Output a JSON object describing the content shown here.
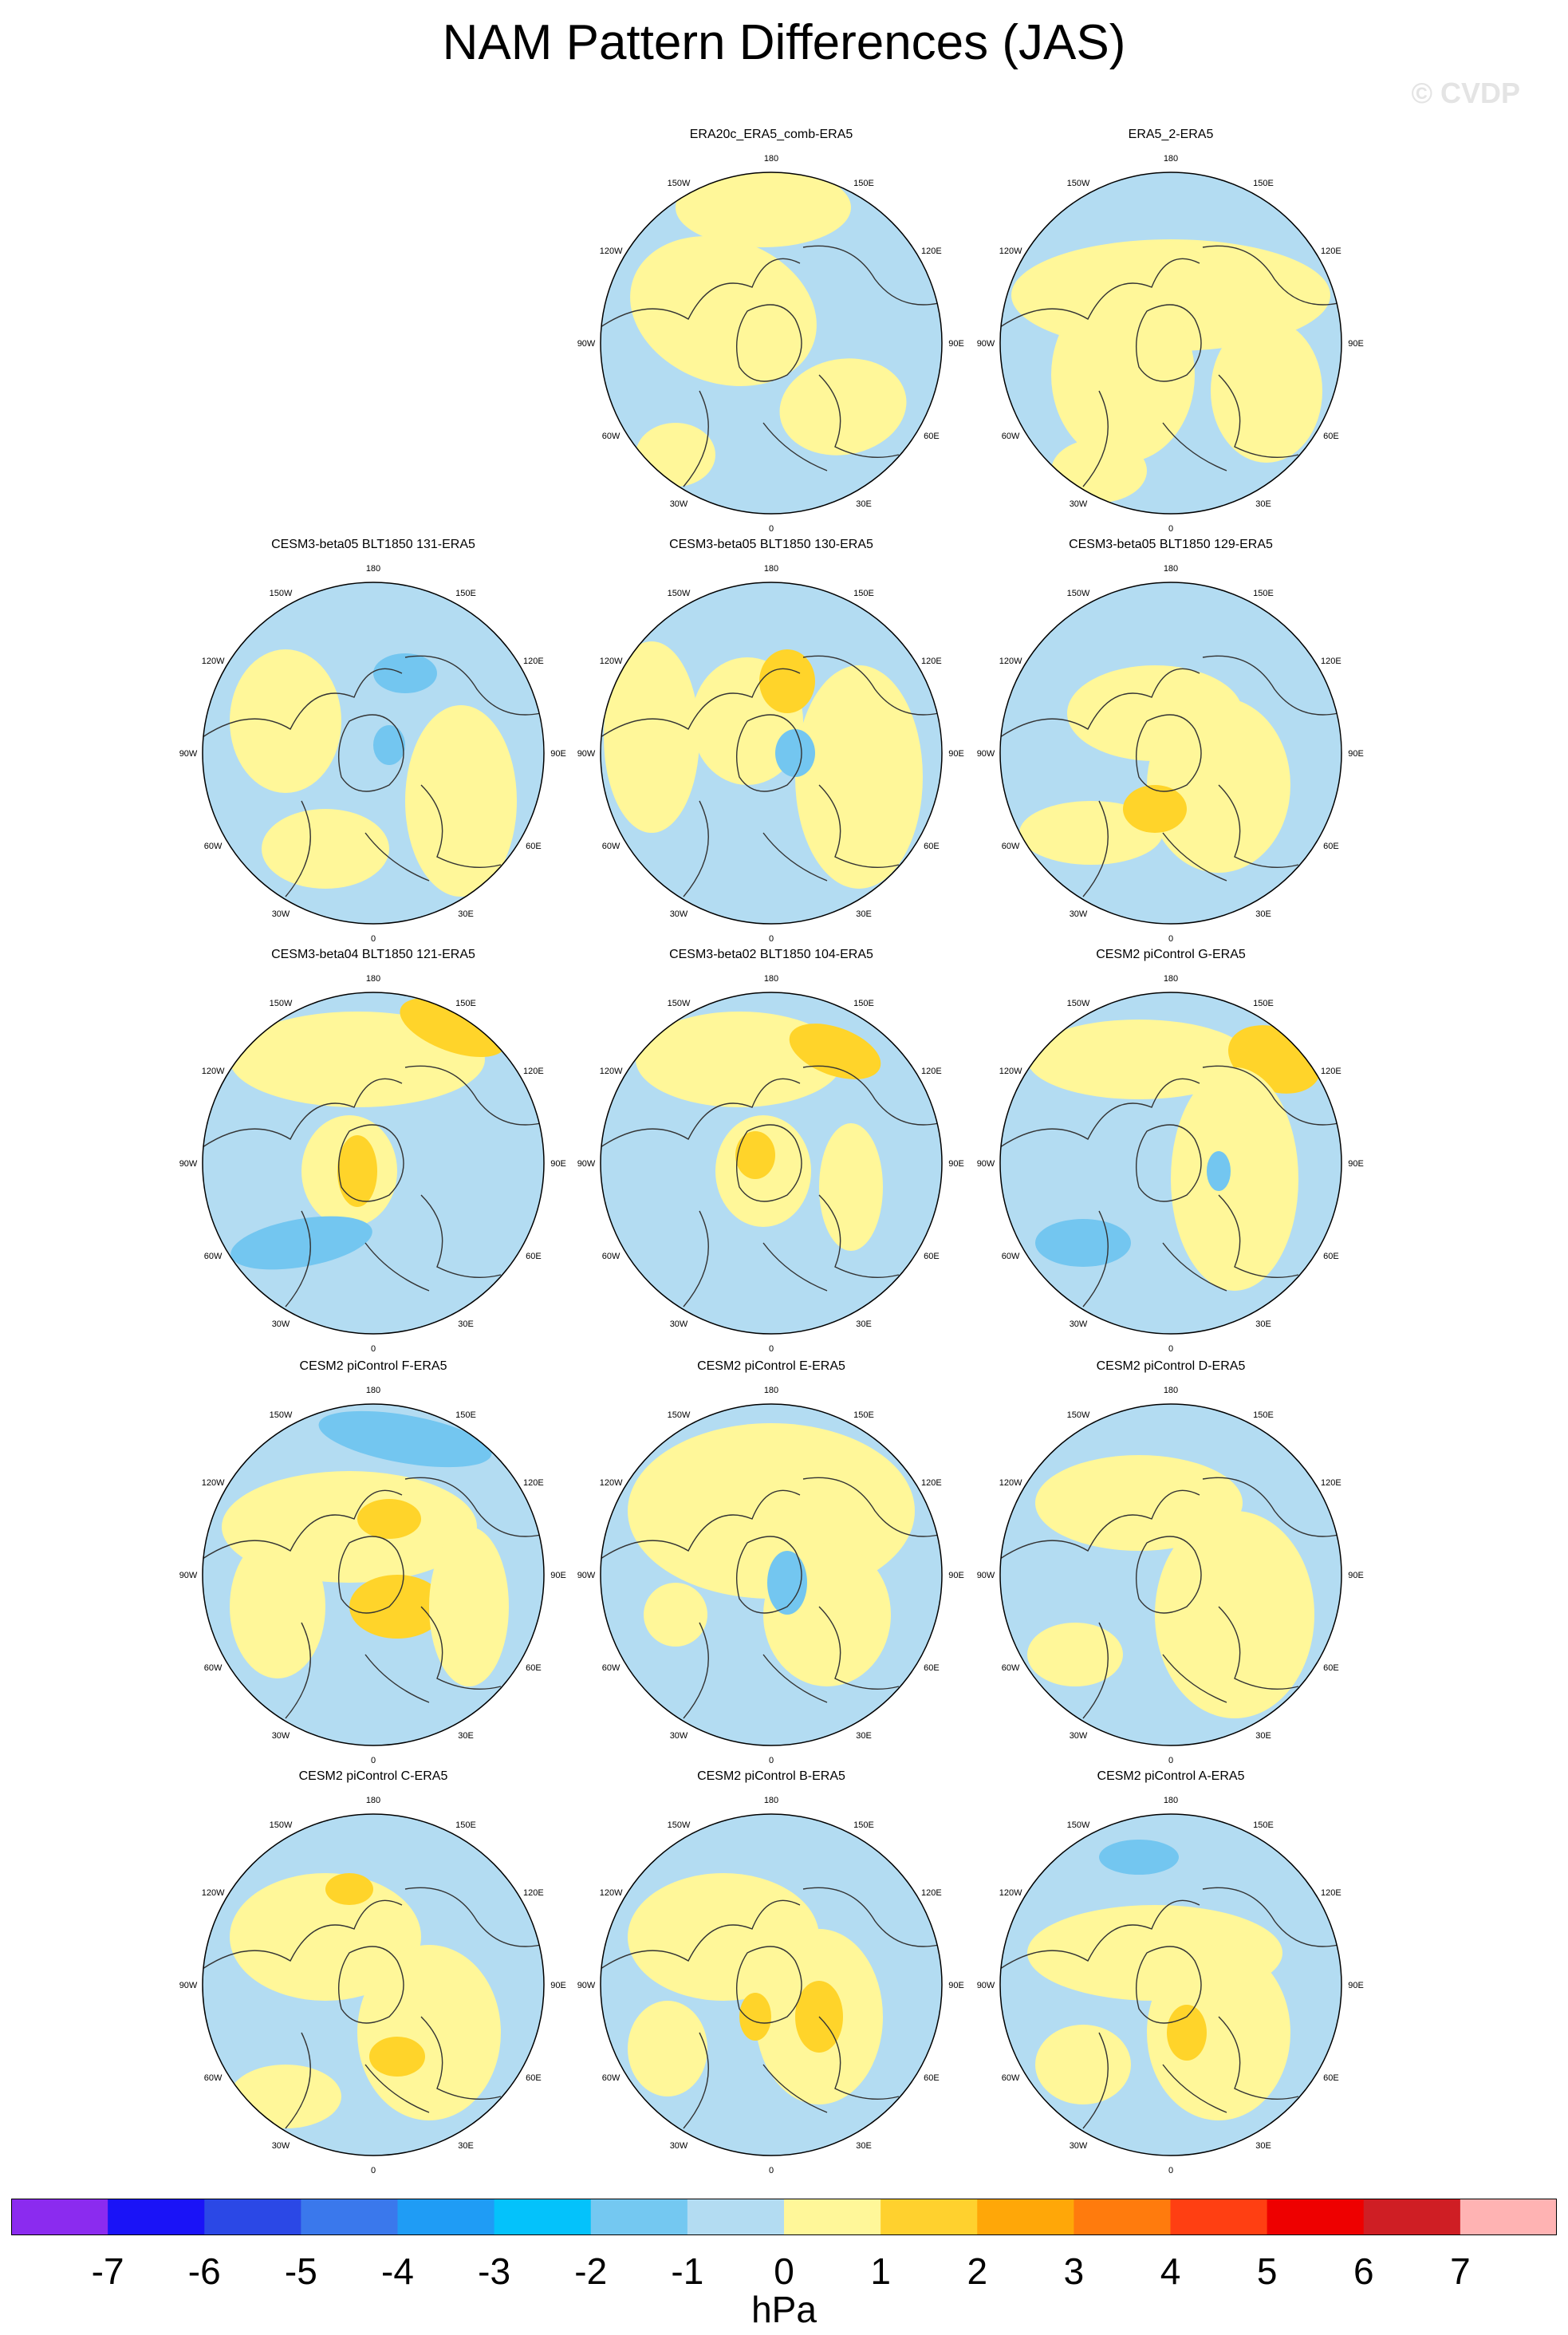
{
  "figure": {
    "title": "NAM Pattern Differences (JAS)",
    "watermark": "© CVDP"
  },
  "map_labels": {
    "lon_0": "0",
    "lon_30e": "30E",
    "lon_60e": "60E",
    "lon_90e": "90E",
    "lon_120e": "120E",
    "lon_150e": "150E",
    "lon_180": "180",
    "lon_150w": "150W",
    "lon_120w": "120W",
    "lon_90w": "90W",
    "lon_60w": "60W",
    "lon_30w": "30W"
  },
  "panels": [
    {
      "title": "ERA20c_ERA5_comb-ERA5",
      "row": 0,
      "col": 1
    },
    {
      "title": "ERA5_2-ERA5",
      "row": 0,
      "col": 2
    },
    {
      "title": "CESM3-beta05 BLT1850 131-ERA5",
      "row": 1,
      "col": 0
    },
    {
      "title": "CESM3-beta05 BLT1850 130-ERA5",
      "row": 1,
      "col": 1
    },
    {
      "title": "CESM3-beta05 BLT1850 129-ERA5",
      "row": 1,
      "col": 2
    },
    {
      "title": "CESM3-beta04 BLT1850 121-ERA5",
      "row": 2,
      "col": 0
    },
    {
      "title": "CESM3-beta02 BLT1850 104-ERA5",
      "row": 2,
      "col": 1
    },
    {
      "title": "CESM2 piControl G-ERA5",
      "row": 2,
      "col": 2
    },
    {
      "title": "CESM2 piControl F-ERA5",
      "row": 3,
      "col": 0
    },
    {
      "title": "CESM2 piControl E-ERA5",
      "row": 3,
      "col": 1
    },
    {
      "title": "CESM2 piControl D-ERA5",
      "row": 3,
      "col": 2
    },
    {
      "title": "CESM2 piControl C-ERA5",
      "row": 4,
      "col": 0
    },
    {
      "title": "CESM2 piControl B-ERA5",
      "row": 4,
      "col": 1
    },
    {
      "title": "CESM2 piControl A-ERA5",
      "row": 4,
      "col": 2
    }
  ],
  "colors": {
    "background_field": "#b3dcf2",
    "positive_weak": "#fff799",
    "positive_moderate": "#ffd42a",
    "negative_moderate": "#73c6f0",
    "coastline": "#333333"
  },
  "colorbar": {
    "units": "hPa",
    "tick_labels": [
      "-7",
      "-6",
      "-5",
      "-4",
      "-3",
      "-2",
      "-1",
      "0",
      "1",
      "2",
      "3",
      "4",
      "5",
      "6",
      "7"
    ],
    "colors": [
      "#8b2bef",
      "#1a13f7",
      "#2b48e6",
      "#3a78ec",
      "#1f9cf5",
      "#04c2fb",
      "#74c8f1",
      "#b3dcf2",
      "#fff799",
      "#ffd12e",
      "#ffa708",
      "#ff7b0d",
      "#ff3f12",
      "#ee0000",
      "#cf1e24",
      "#ffb3b3"
    ]
  }
}
